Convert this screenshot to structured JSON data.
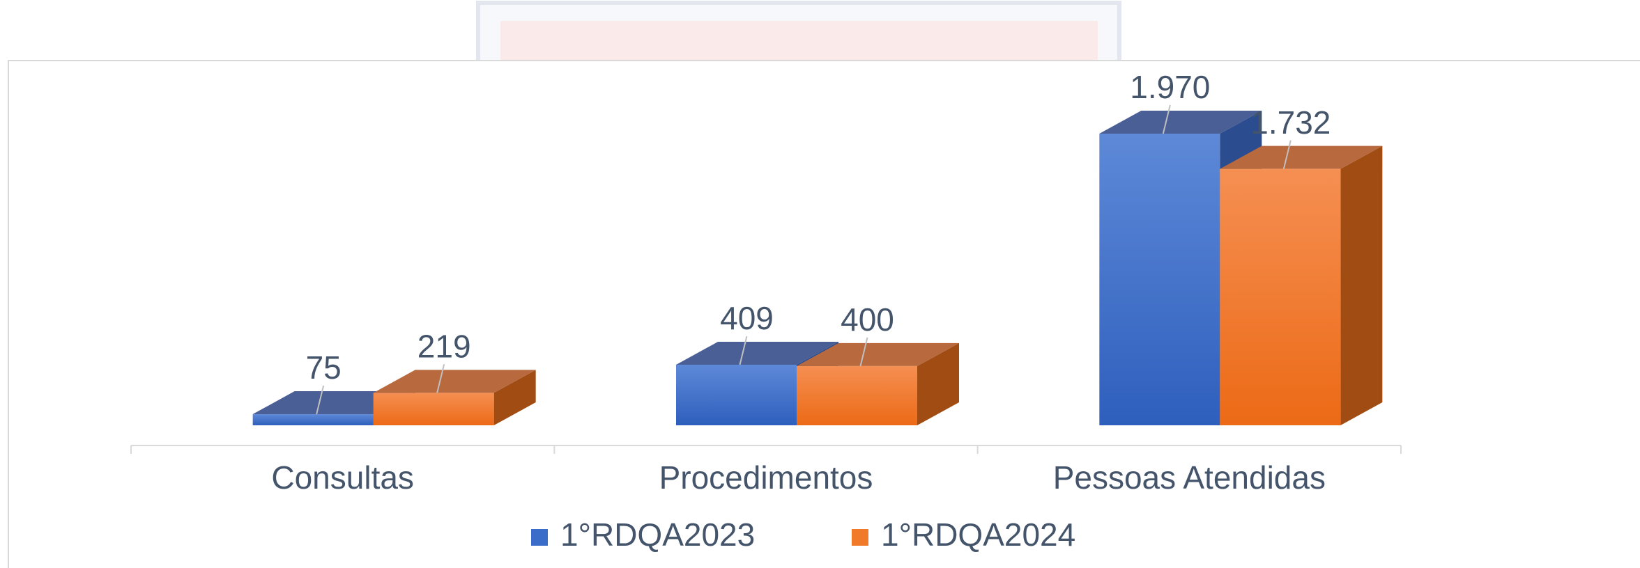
{
  "chart_data": {
    "type": "bar3d",
    "categories": [
      "Consultas",
      "Procedimentos",
      "Pessoas Atendidas"
    ],
    "series": [
      {
        "name": "1°RDQA2023",
        "color": "#3a6cc9",
        "values": [
          75,
          409,
          1970
        ],
        "value_labels": [
          "75",
          "409",
          "1.970"
        ]
      },
      {
        "name": "1°RDQA2024",
        "color": "#f07a2a",
        "values": [
          219,
          400,
          1732
        ],
        "value_labels": [
          "219",
          "400",
          "1.732"
        ]
      }
    ],
    "legend": "bottom"
  }
}
